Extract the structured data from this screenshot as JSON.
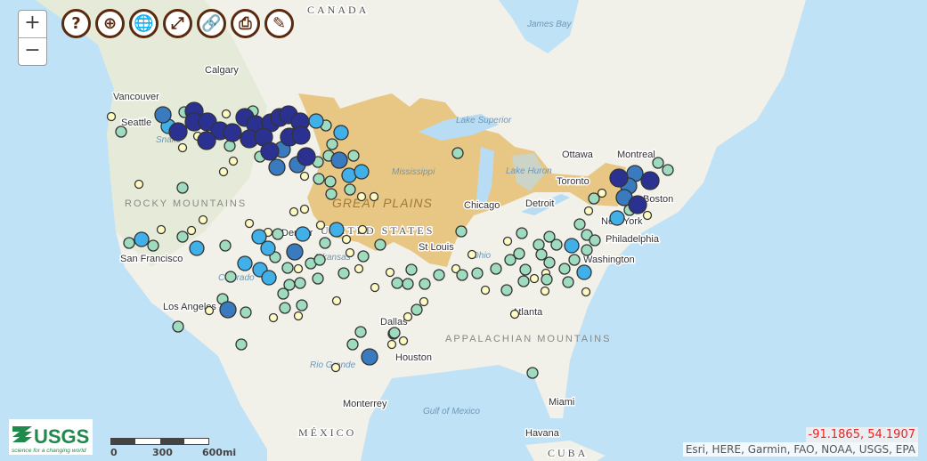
{
  "map": {
    "colors": {
      "ocean": "#bfe2f7",
      "land": "#f1f0e9",
      "land_west": "#e2ead3",
      "basin": "#e7c27a",
      "lake": "#b7dcf3",
      "classes": [
        "#2b3190",
        "#3a7bbf",
        "#41b0e8",
        "#9fdcbf",
        "#fffbc2"
      ]
    },
    "labels": {
      "canada": "CANADA",
      "james_bay": "James Bay",
      "calgary": "Calgary",
      "vancouver": "Vancouver",
      "seattle": "Seattle",
      "lake_superior": "Lake Superior",
      "ottawa": "Ottawa",
      "montreal": "Montreal",
      "toronto": "Toronto",
      "lake_huron": "Lake Huron",
      "chicago": "Chicago",
      "detroit": "Detroit",
      "boston": "Boston",
      "new_york": "New York",
      "philadelphia": "Philadelphia",
      "washington": "Washington",
      "st_louis": "St Louis",
      "great_plains": "GREAT PLAINS",
      "united_states": "UNITED STATES",
      "denver": "Denver",
      "san_francisco": "San Francisco",
      "los_angeles": "Los Angeles",
      "dallas": "Dallas",
      "houston": "Houston",
      "atlanta": "Atlanta",
      "monterrey": "Monterrey",
      "gulf_of_mexico": "Gulf of Mexico",
      "miami": "Miami",
      "havana": "Havana",
      "mexico": "MÉXICO",
      "cuba": "CUBA",
      "mississippi": "Mississippi",
      "arkansas": "Arkansas",
      "colorado": "Colorado",
      "rio_grande": "Rio Grande",
      "ohio": "Ohio",
      "snake": "Snake",
      "rocky_mountains": "ROCKY MOUNTAINS",
      "appalachian": "APPALACHIAN MOUNTAINS"
    }
  },
  "controls": {
    "zoom_in": "+",
    "zoom_out": "−",
    "tools": [
      {
        "icon": "help-icon",
        "glyph": "?"
      },
      {
        "icon": "zoom-to-extent-icon",
        "glyph": "⊕"
      },
      {
        "icon": "globe-icon",
        "glyph": "🌐"
      },
      {
        "icon": "fullscreen-icon",
        "glyph": "⤢"
      },
      {
        "icon": "link-icon",
        "glyph": "🔗"
      },
      {
        "icon": "download-document-icon",
        "glyph": "⎙"
      },
      {
        "icon": "pencil-icon",
        "glyph": "✎"
      }
    ]
  },
  "logo": {
    "text": "USGS",
    "tagline": "science for a changing world"
  },
  "scale": {
    "labels": [
      "0",
      "300",
      "600mi"
    ]
  },
  "coordinates": "-91.1865, 54.1907",
  "attribution": "Esri, HERE, Garmin, FAO, NOAA, USGS, EPA"
}
